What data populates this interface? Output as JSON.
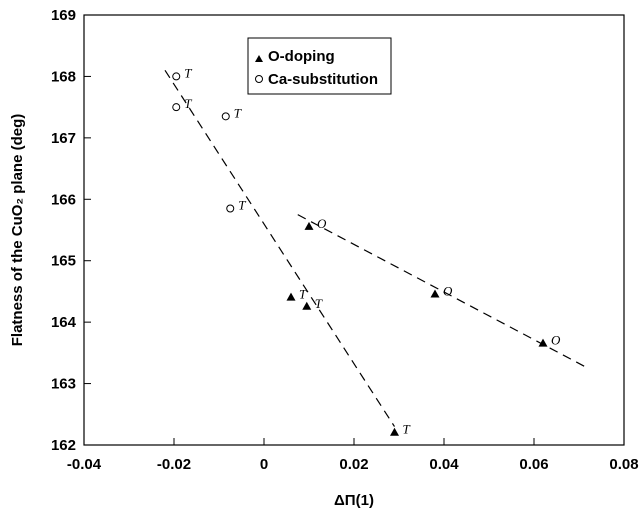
{
  "chart_data": {
    "type": "scatter",
    "xlabel": "ΔΠ(1)",
    "ylabel": "Flatness of the CuO₂ plane (deg)",
    "xlim": [
      -0.04,
      0.08
    ],
    "ylim": [
      162,
      169
    ],
    "x_ticks": [
      "-0.04",
      "-0.02",
      "0",
      "0.02",
      "0.04",
      "0.06",
      "0.08"
    ],
    "y_ticks": [
      "162",
      "163",
      "164",
      "165",
      "166",
      "167",
      "168",
      "169"
    ],
    "legend": {
      "placement": "top-center"
    },
    "series": [
      {
        "name": "O-doping",
        "marker": "filled-triangle",
        "points": [
          {
            "x": 0.006,
            "y": 164.4,
            "label": "T"
          },
          {
            "x": 0.0095,
            "y": 164.25,
            "label": "T"
          },
          {
            "x": 0.029,
            "y": 162.2,
            "label": "T"
          },
          {
            "x": 0.01,
            "y": 165.55,
            "label": "O"
          },
          {
            "x": 0.038,
            "y": 164.45,
            "label": "O"
          },
          {
            "x": 0.062,
            "y": 163.65,
            "label": "O"
          }
        ]
      },
      {
        "name": "Ca-substitution",
        "marker": "open-circle",
        "points": [
          {
            "x": -0.0195,
            "y": 168.0,
            "label": "T"
          },
          {
            "x": -0.0195,
            "y": 167.5,
            "label": "T"
          },
          {
            "x": -0.0085,
            "y": 167.35,
            "label": "T"
          },
          {
            "x": -0.0075,
            "y": 165.85,
            "label": "T"
          }
        ]
      }
    ],
    "fit_lines": [
      {
        "x": [
          -0.022,
          0.029
        ],
        "y": [
          168.1,
          162.3
        ]
      },
      {
        "x": [
          0.0075,
          0.072
        ],
        "y": [
          165.75,
          163.25
        ]
      }
    ],
    "grid": false
  }
}
